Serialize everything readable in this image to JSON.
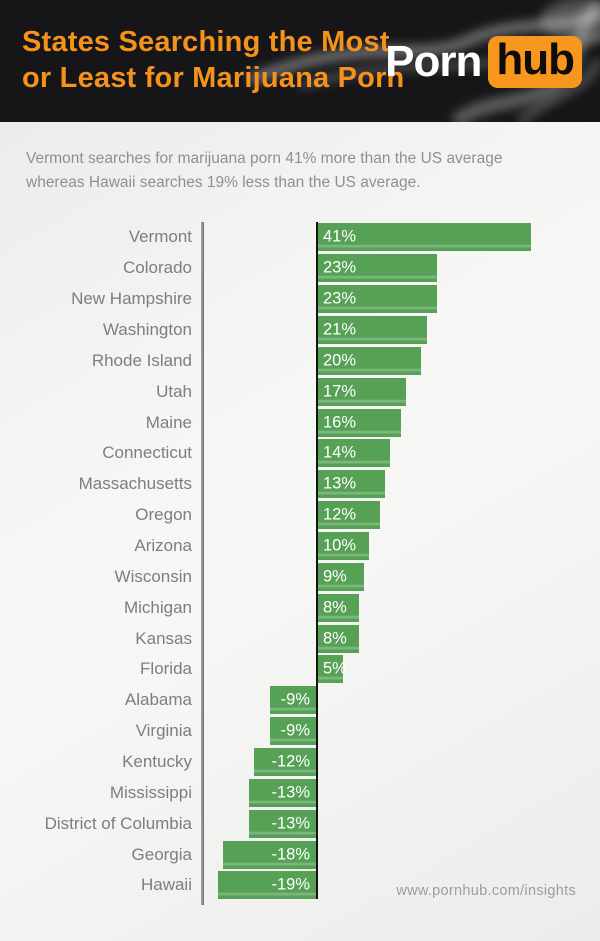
{
  "header": {
    "title_line1": "States Searching the Most",
    "title_line2": "or Least for Marijuana Porn",
    "title_color": "#f5921e",
    "background_color": "#161618",
    "logo": {
      "part1": "Porn",
      "part2": "hub",
      "hub_bg_color": "#f7971d"
    }
  },
  "subtitle": {
    "line1": "Vermont searches for marijuana porn 41% more than the US average",
    "line2": "whereas Hawaii searches 19% less than the US average."
  },
  "footer": {
    "url": "www.pornhub.com/insights"
  },
  "chart_data": {
    "type": "bar",
    "orientation": "horizontal",
    "title": "States Searching the Most or Least for Marijuana Porn",
    "categories": [
      "Vermont",
      "Colorado",
      "New Hampshire",
      "Washington",
      "Rhode Island",
      "Utah",
      "Maine",
      "Connecticut",
      "Massachusetts",
      "Oregon",
      "Arizona",
      "Wisconsin",
      "Michigan",
      "Kansas",
      "Florida",
      "Alabama",
      "Virginia",
      "Kentucky",
      "Mississippi",
      "District of Columbia",
      "Georgia",
      "Hawaii"
    ],
    "values": [
      41,
      23,
      23,
      21,
      20,
      17,
      16,
      14,
      13,
      12,
      10,
      9,
      8,
      8,
      5,
      -9,
      -9,
      -12,
      -13,
      -13,
      -18,
      -19
    ],
    "value_labels": [
      "41%",
      "23%",
      "23%",
      "21%",
      "20%",
      "17%",
      "16%",
      "14%",
      "13%",
      "12%",
      "10%",
      "9%",
      "8%",
      "8%",
      "5%",
      "-9%",
      "-9%",
      "-12%",
      "-13%",
      "-13%",
      "-18%",
      "-19%"
    ],
    "bar_color": "#56a156",
    "xlim": [
      -22,
      54
    ],
    "grid": false,
    "legend": false
  }
}
